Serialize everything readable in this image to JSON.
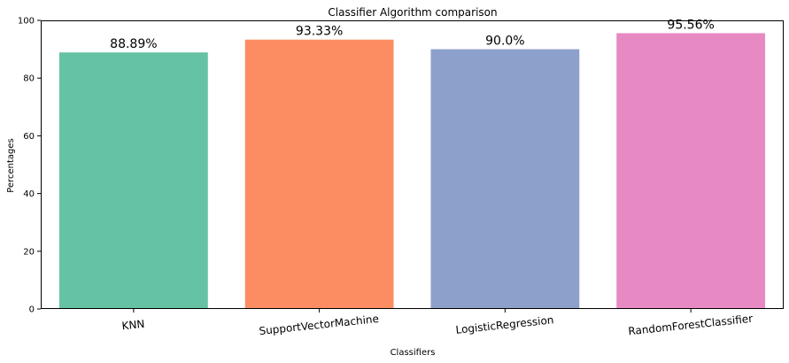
{
  "chart_data": {
    "type": "bar",
    "title": "Classifier Algorithm comparison",
    "xlabel": "Classifiers",
    "ylabel": "Percentages",
    "categories": [
      "KNN",
      "SupportVectorMachine",
      "LogisticRegression",
      "RandomForestClassifier"
    ],
    "values": [
      88.89,
      93.33,
      90.0,
      95.56
    ],
    "data_labels": [
      "88.89%",
      "93.33%",
      "90.0%",
      "95.56%"
    ],
    "colors": [
      "#66c2a5",
      "#fc8d62",
      "#8da0cb",
      "#e78ac3"
    ],
    "ylim": [
      0,
      100
    ],
    "yticks": [
      0,
      20,
      40,
      60,
      80,
      100
    ],
    "ytick_labels": [
      "0",
      "20",
      "40",
      "60",
      "80",
      "100"
    ],
    "grid": false,
    "legend": "none"
  }
}
